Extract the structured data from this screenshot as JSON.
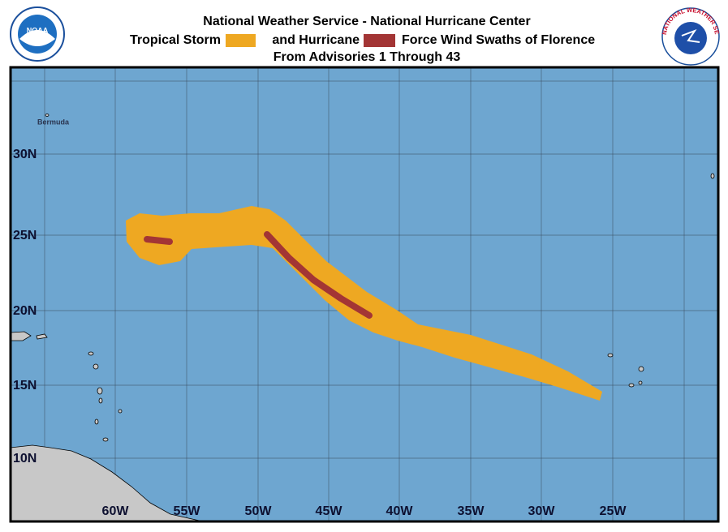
{
  "header": {
    "title": "National Weather Service - National Hurricane Center",
    "legend_storm": "Tropical Storm",
    "legend_hurricane": "and Hurricane",
    "legend_suffix": "Force Wind Swaths of Florence",
    "subtitle": "From Advisories 1 Through 43",
    "left_logo": "NOAA",
    "right_logo": "NATIONAL WEATHER SERVICE"
  },
  "map": {
    "place_labels": [
      "Bermuda"
    ],
    "longitude_labels": [
      "60W",
      "55W",
      "50W",
      "45W",
      "40W",
      "35W",
      "30W",
      "25W"
    ],
    "latitude_labels": [
      "30N",
      "25N",
      "20N",
      "15N",
      "10N"
    ]
  }
}
